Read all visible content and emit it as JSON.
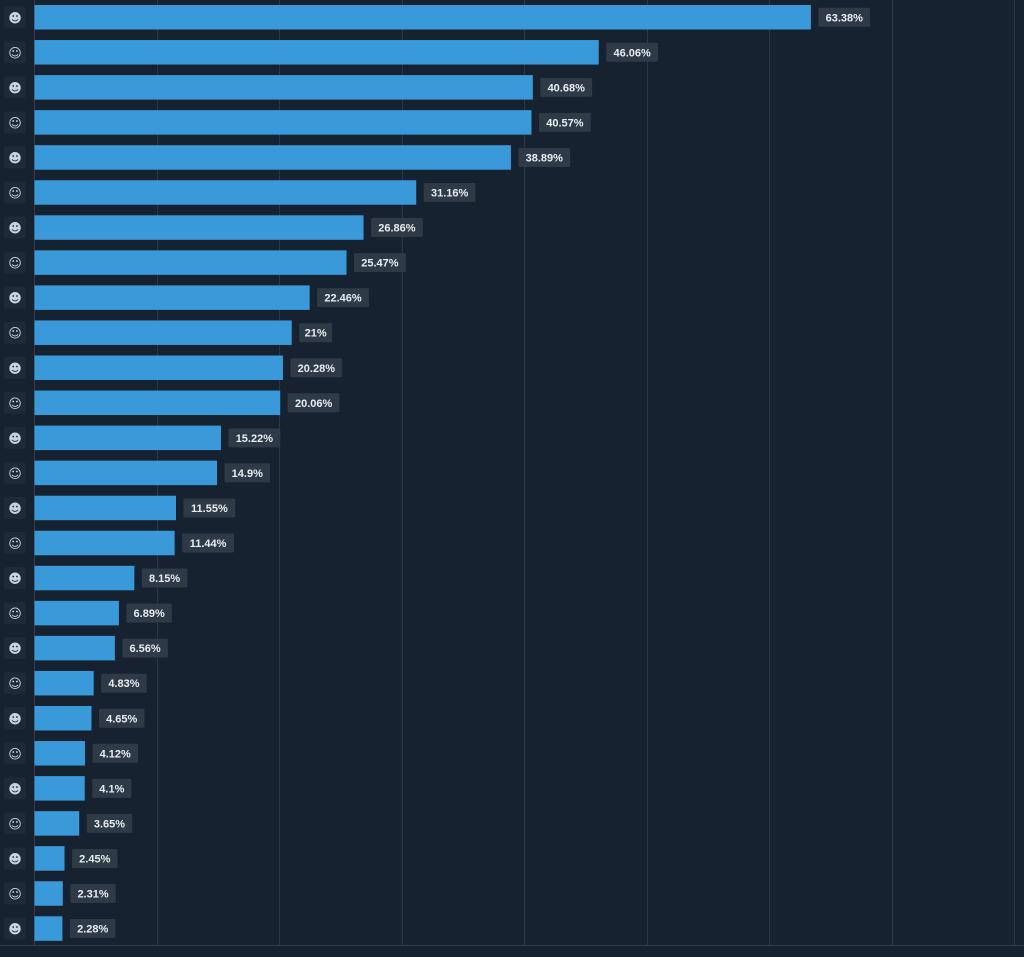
{
  "colors": {
    "background": "#162230",
    "bar": "#3a9ad9",
    "grid": "#26384a",
    "label_bg": "#2e3a46",
    "label_text": "#e8edf2",
    "avatar_bg": "#1d2a38",
    "axis": "#2c3e50"
  },
  "chart_data": {
    "type": "bar",
    "orientation": "horizontal",
    "categories": [
      "character-portrait-1",
      "character-portrait-2",
      "character-portrait-3",
      "character-portrait-4",
      "character-portrait-5",
      "character-portrait-6",
      "character-portrait-7",
      "character-portrait-8",
      "character-portrait-9",
      "character-portrait-10",
      "character-portrait-11",
      "character-portrait-12",
      "character-portrait-13",
      "character-portrait-14",
      "character-portrait-15",
      "character-portrait-16",
      "character-portrait-17",
      "character-portrait-18",
      "character-portrait-19",
      "character-portrait-20",
      "character-portrait-21",
      "character-portrait-22",
      "character-portrait-23",
      "character-portrait-24",
      "character-portrait-25",
      "character-portrait-26",
      "character-portrait-27"
    ],
    "values": [
      63.38,
      46.06,
      40.68,
      40.57,
      38.89,
      31.16,
      26.86,
      25.47,
      22.46,
      21,
      20.28,
      20.06,
      15.22,
      14.9,
      11.55,
      11.44,
      8.15,
      6.89,
      6.56,
      4.83,
      4.65,
      4.12,
      4.1,
      3.65,
      2.45,
      2.31,
      2.28
    ],
    "labels": [
      "63.38%",
      "46.06%",
      "40.68%",
      "40.57%",
      "38.89%",
      "31.16%",
      "26.86%",
      "25.47%",
      "22.46%",
      "21%",
      "20.28%",
      "20.06%",
      "15.22%",
      "14.9%",
      "11.55%",
      "11.44%",
      "8.15%",
      "6.89%",
      "6.56%",
      "4.83%",
      "4.65%",
      "4.12%",
      "4.1%",
      "3.65%",
      "2.45%",
      "2.31%",
      "2.28%"
    ],
    "xlim": [
      0,
      80
    ],
    "grid_step": 10,
    "grid": true,
    "title": "",
    "xlabel": "",
    "ylabel": "",
    "legend": "none"
  }
}
